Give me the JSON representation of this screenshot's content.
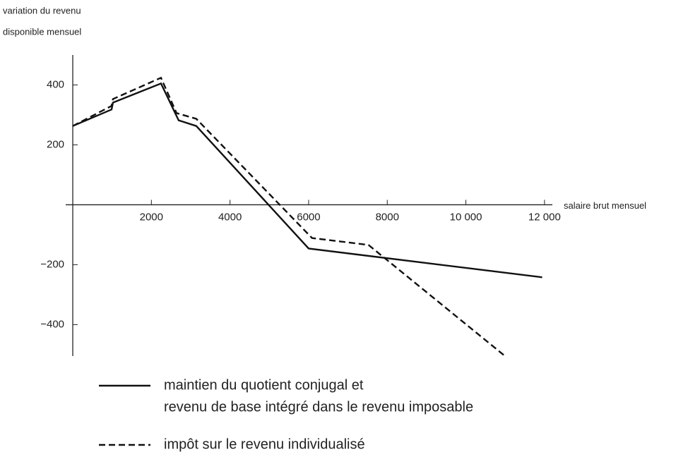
{
  "chart_data": {
    "type": "line",
    "ylabel": [
      "variation du revenu",
      "disponible mensuel"
    ],
    "xlabel": "salaire brut mensuel",
    "xlim": [
      -180,
      12200
    ],
    "ylim": [
      -505,
      500
    ],
    "xticks": [
      2000,
      4000,
      6000,
      8000,
      {
        "value": 10000,
        "label": "10 000"
      },
      {
        "value": 12000,
        "label": "12 000"
      }
    ],
    "yticks": [
      {
        "value": -400,
        "label": "−400"
      },
      {
        "value": -200,
        "label": "−200"
      },
      200,
      400
    ],
    "grid": false,
    "series": [
      {
        "name": [
          "maintien du quotient conjugal et",
          "revenu de base intégré dans le revenu imposable"
        ],
        "color": "#111111",
        "dash": "solid",
        "x": [
          0,
          987,
          1023,
          2244,
          2693,
          3142,
          6000,
          11940
        ],
        "values": [
          263,
          318,
          341,
          405,
          282,
          263,
          -146,
          -242
        ]
      },
      {
        "name": [
          "impôt sur le revenu individualisé"
        ],
        "color": "#111111",
        "dash": "dashed",
        "x": [
          0,
          987,
          1023,
          2244,
          2640,
          3142,
          6086,
          7522,
          11005
        ],
        "values": [
          263,
          330,
          353,
          424,
          306,
          287,
          -111,
          -134,
          -506
        ]
      }
    ]
  }
}
